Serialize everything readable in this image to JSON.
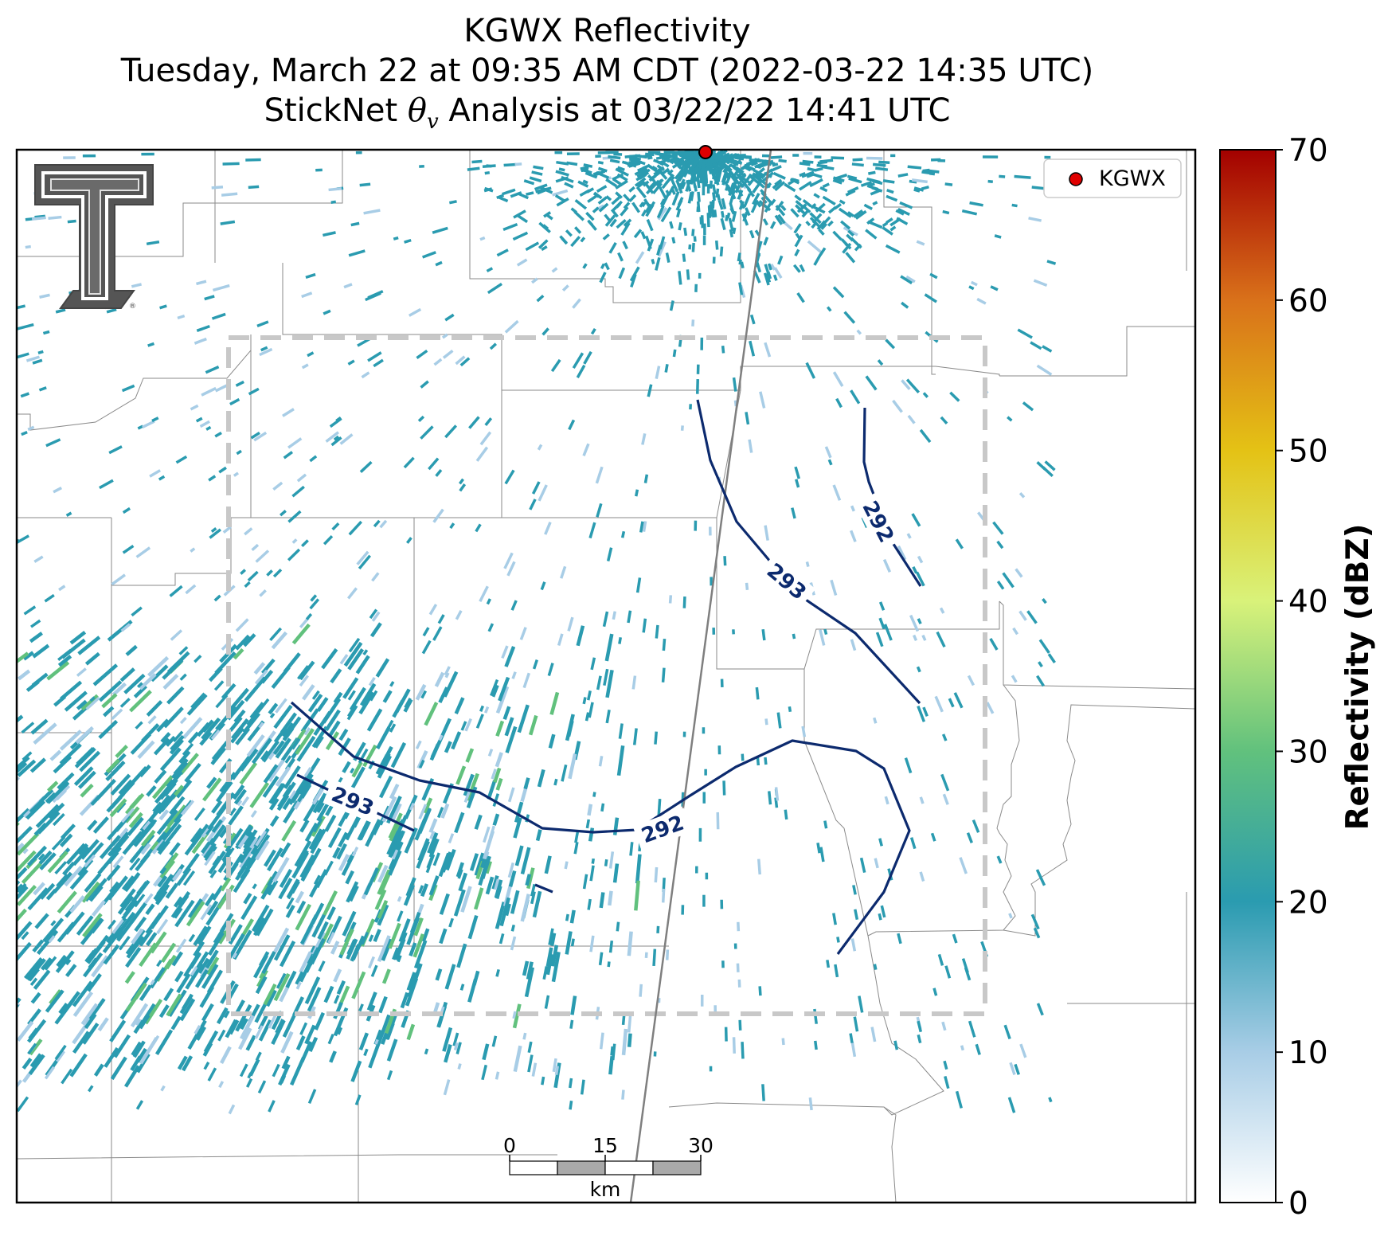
{
  "title": {
    "line1": "KGWX Reflectivity",
    "line2": "Tuesday, March 22 at 09:35 AM CDT (2022-03-22 14:35 UTC)",
    "line3_prefix": "StickNet ",
    "line3_symbol": "θ",
    "line3_subscript": "v",
    "line3_suffix": " Analysis at 03/22/22 14:41 UTC"
  },
  "legend": {
    "entries": [
      {
        "label": "KGWX",
        "marker": "red-circle"
      }
    ]
  },
  "colorbar": {
    "label": "Reflectivity (dBZ)",
    "min": 0,
    "max": 70,
    "ticks": [
      "0",
      "10",
      "20",
      "30",
      "40",
      "50",
      "60",
      "70"
    ],
    "colors": [
      "#ffffff",
      "#a8cde6",
      "#2a9bb0",
      "#61c17d",
      "#d9f27a",
      "#e4c215",
      "#d9711a",
      "#a30000"
    ]
  },
  "scalebar": {
    "ticks": [
      "0",
      "15",
      "30"
    ],
    "unit": "km"
  },
  "contours": {
    "labels": [
      "293",
      "292",
      "293",
      "292"
    ],
    "color": "#0c2a6e"
  },
  "radar_site": {
    "name": "KGWX",
    "color": "#e00000"
  },
  "colors": {
    "analysis_box": "#c8c8c8",
    "county_lines": "#8a8a8a",
    "echo_main": "#2a9bb0",
    "echo_light": "#a8cde6",
    "echo_green": "#61c17d"
  },
  "logo": {
    "icon": "double-t-logo"
  }
}
